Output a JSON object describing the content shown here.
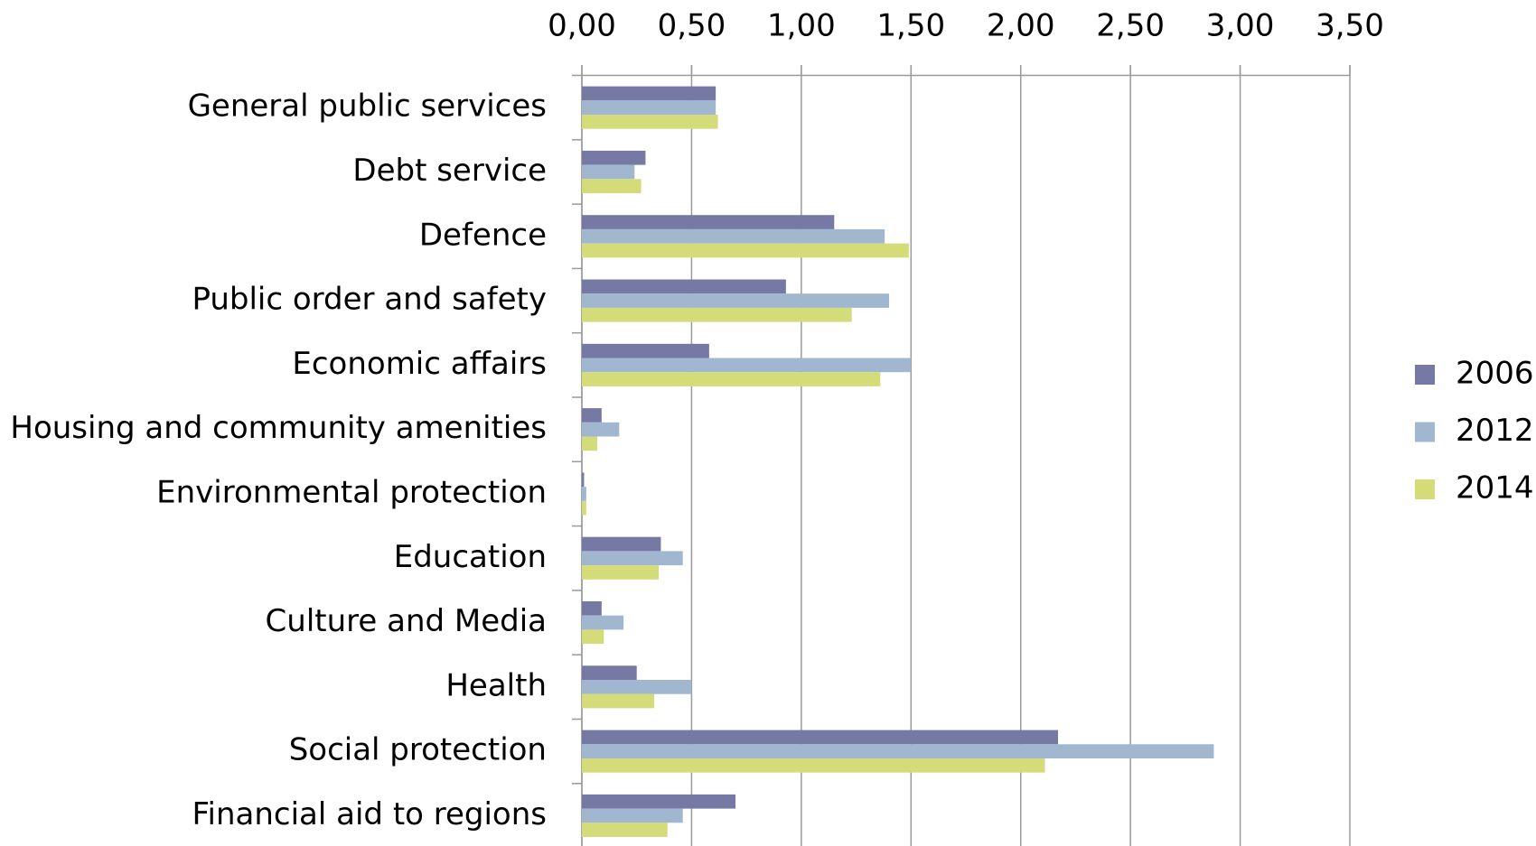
{
  "chart_data": {
    "type": "bar",
    "orientation": "horizontal",
    "categories": [
      "General public services",
      "Debt service",
      "Defence",
      "Public order and safety",
      "Economic affairs",
      "Housing and community amenities",
      "Environmental protection",
      "Education",
      "Culture and Media",
      "Health",
      "Social protection",
      "Financial aid to regions"
    ],
    "series": [
      {
        "name": "2006",
        "color": "#7579a3",
        "values": [
          0.61,
          0.29,
          1.15,
          0.93,
          0.58,
          0.09,
          0.01,
          0.36,
          0.09,
          0.25,
          2.17,
          0.7
        ]
      },
      {
        "name": "2012",
        "color": "#a0b7cf",
        "values": [
          0.61,
          0.24,
          1.38,
          1.4,
          1.5,
          0.17,
          0.02,
          0.46,
          0.19,
          0.5,
          2.88,
          0.46
        ]
      },
      {
        "name": "2014",
        "color": "#d4dc7a",
        "values": [
          0.62,
          0.27,
          1.49,
          1.23,
          1.36,
          0.07,
          0.02,
          0.35,
          0.1,
          0.33,
          2.11,
          0.39
        ]
      }
    ],
    "xlim": [
      0,
      3.5
    ],
    "xticks": [
      {
        "value": 0,
        "label": "0,00"
      },
      {
        "value": 0.5,
        "label": "0,50"
      },
      {
        "value": 1,
        "label": "1,00"
      },
      {
        "value": 1.5,
        "label": "1,50"
      },
      {
        "value": 2,
        "label": "2,00"
      },
      {
        "value": 2.5,
        "label": "2,50"
      },
      {
        "value": 3,
        "label": "3,00"
      },
      {
        "value": 3.5,
        "label": "3,50"
      }
    ],
    "grid": true,
    "legend": "right"
  }
}
